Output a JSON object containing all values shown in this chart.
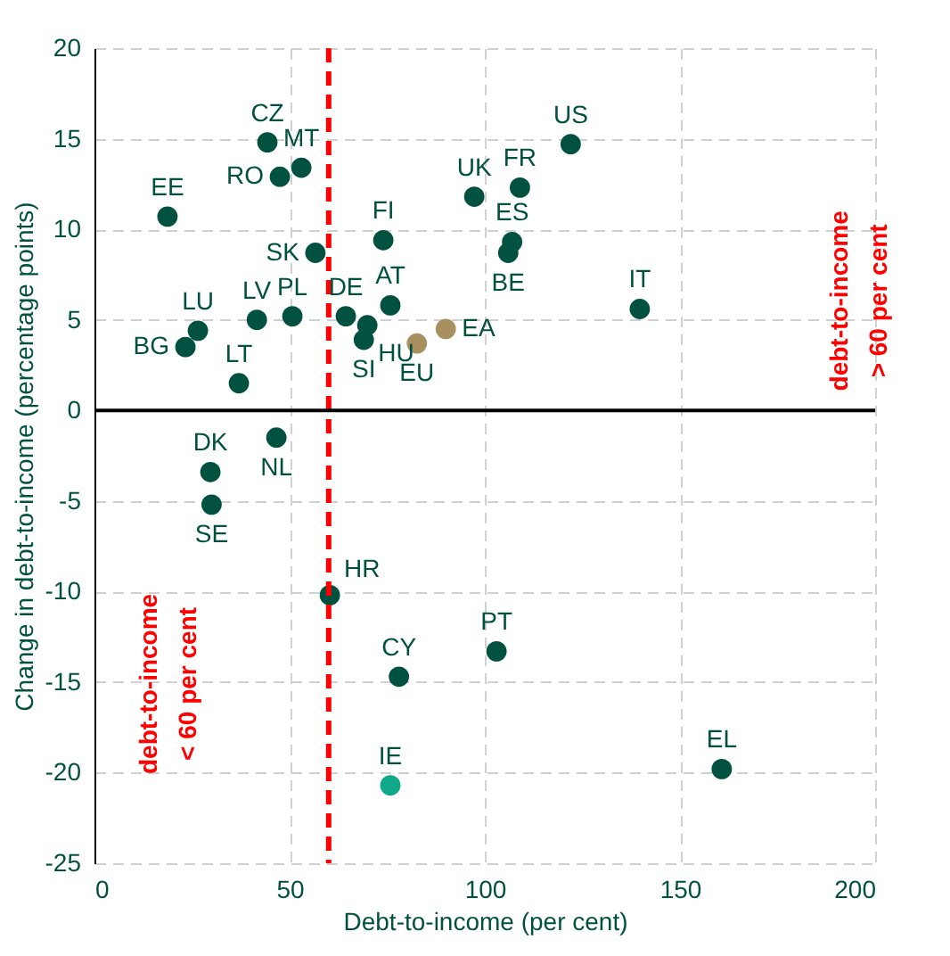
{
  "chart_data": {
    "type": "scatter",
    "xlabel": "Debt-to-income (per cent)",
    "ylabel": "Change in debt-to-income (percentage points)",
    "x": [
      44.3,
      53.0,
      47.5,
      18.7,
      74.0,
      56.6,
      97.3,
      109.0,
      122.0,
      107.0,
      106.0,
      139.7,
      75.8,
      64.4,
      69.9,
      69.0,
      82.6,
      90.0,
      26.5,
      23.3,
      41.6,
      50.7,
      37.0,
      46.6,
      29.7,
      30.0,
      60.3,
      78.0,
      103.0,
      75.8,
      160.7
    ],
    "values": [
      14.8,
      13.4,
      12.9,
      10.7,
      9.4,
      8.7,
      11.8,
      12.3,
      14.7,
      9.3,
      8.7,
      5.6,
      5.8,
      5.2,
      4.7,
      3.9,
      3.7,
      4.5,
      4.4,
      3.5,
      5.0,
      5.2,
      1.5,
      -1.5,
      -3.4,
      -5.2,
      -10.2,
      -14.7,
      -13.3,
      -20.7,
      -19.8
    ],
    "colors": [
      "#00513f",
      "#00513f",
      "#00513f",
      "#00513f",
      "#00513f",
      "#00513f",
      "#00513f",
      "#00513f",
      "#00513f",
      "#00513f",
      "#00513f",
      "#00513f",
      "#00513f",
      "#00513f",
      "#00513f",
      "#00513f",
      "#a89060",
      "#a89060",
      "#00513f",
      "#00513f",
      "#00513f",
      "#00513f",
      "#00513f",
      "#00513f",
      "#00513f",
      "#00513f",
      "#00513f",
      "#00513f",
      "#00513f",
      "#10a88a",
      "#00513f"
    ],
    "marker": "circle",
    "xlim": [
      0,
      200
    ],
    "xticks": [
      0,
      50,
      100,
      150,
      200
    ],
    "ylim": [
      -25,
      20
    ],
    "yticks": [
      -25,
      -20,
      -15,
      -10,
      -5,
      0,
      5,
      10,
      15,
      20
    ],
    "grid": true,
    "ref_lines": [
      {
        "axis": "x",
        "value": 60,
        "color": "#ff0000",
        "line_style": "dashed"
      },
      {
        "axis": "y",
        "value": 0,
        "color": "#000000",
        "line_style": "solid"
      }
    ],
    "annotations": [
      "debt-to-income\n< 60 per cent",
      "debt-to-income\n> 60 per cent",
      {
        "text": "CZ",
        "x": 44.3,
        "y": 14.8
      },
      {
        "text": "MT",
        "x": 53.0,
        "y": 13.4
      },
      {
        "text": "RO",
        "x": 47.5,
        "y": 12.9
      },
      {
        "text": "EE",
        "x": 18.7,
        "y": 10.7
      },
      {
        "text": "FI",
        "x": 74.0,
        "y": 9.4
      },
      {
        "text": "SK",
        "x": 56.6,
        "y": 8.7
      },
      {
        "text": "UK",
        "x": 97.3,
        "y": 11.8
      },
      {
        "text": "FR",
        "x": 109.0,
        "y": 12.3
      },
      {
        "text": "US",
        "x": 122.0,
        "y": 14.7
      },
      {
        "text": "ES",
        "x": 107.0,
        "y": 9.3
      },
      {
        "text": "BE",
        "x": 106.0,
        "y": 8.7
      },
      {
        "text": "IT",
        "x": 139.7,
        "y": 5.6
      },
      {
        "text": "AT",
        "x": 75.8,
        "y": 5.8
      },
      {
        "text": "DE",
        "x": 64.4,
        "y": 5.2
      },
      {
        "text": "HU",
        "x": 69.9,
        "y": 4.7
      },
      {
        "text": "SI",
        "x": 69.0,
        "y": 3.9
      },
      {
        "text": "EU",
        "x": 82.6,
        "y": 3.7
      },
      {
        "text": "EA",
        "x": 90.0,
        "y": 4.5
      },
      {
        "text": "LU",
        "x": 26.5,
        "y": 4.4
      },
      {
        "text": "BG",
        "x": 23.3,
        "y": 3.5
      },
      {
        "text": "LV",
        "x": 41.6,
        "y": 5.0
      },
      {
        "text": "PL",
        "x": 50.7,
        "y": 5.2
      },
      {
        "text": "LT",
        "x": 37.0,
        "y": 1.5
      },
      {
        "text": "NL",
        "x": 46.6,
        "y": -1.5
      },
      {
        "text": "DK",
        "x": 29.7,
        "y": -3.4
      },
      {
        "text": "SE",
        "x": 30.0,
        "y": -5.2
      },
      {
        "text": "HR",
        "x": 60.3,
        "y": -10.2
      },
      {
        "text": "CY",
        "x": 78.0,
        "y": -14.7
      },
      {
        "text": "PT",
        "x": 103.0,
        "y": -13.3
      },
      {
        "text": "IE",
        "x": 75.8,
        "y": -20.7
      },
      {
        "text": "EL",
        "x": 160.7,
        "y": -19.8
      }
    ]
  }
}
